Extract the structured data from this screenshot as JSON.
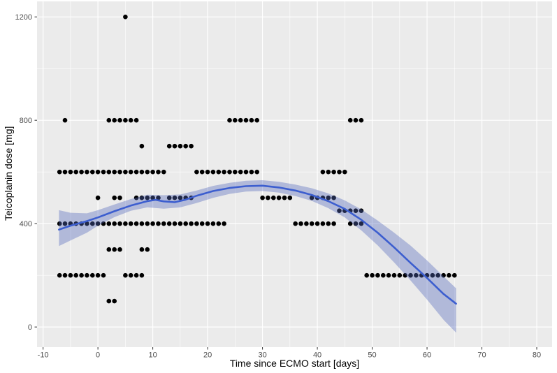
{
  "style": {
    "panel_bg": "#ebebeb",
    "grid_color": "#ffffff",
    "point_color": "#000000",
    "line_color": "#3c5ecf",
    "ribbon_color": "rgba(85,105,190,0.38)",
    "tick_text_color": "#4d4d4d",
    "tick_mark_color": "#333333",
    "axis_title_color": "#000000"
  },
  "chart_data": {
    "type": "scatter",
    "title": "",
    "xlabel": "Time since ECMO start [days]",
    "ylabel": "Teicoplanin dose [mg]",
    "xlim": [
      -11.1,
      82.8
    ],
    "ylim": [
      -78,
      1260
    ],
    "x_ticks": [
      -10,
      0,
      10,
      20,
      30,
      40,
      50,
      60,
      70,
      80
    ],
    "x_minor_ticks": [
      -5,
      5,
      15,
      25,
      35,
      45,
      55,
      65,
      75
    ],
    "y_ticks": [
      0,
      400,
      800,
      1200
    ],
    "y_minor_ticks": [
      200,
      600,
      1000
    ],
    "grid": true,
    "legend": "none",
    "points": [
      {
        "dose": 1200,
        "days": [
          5
        ]
      },
      {
        "dose": 800,
        "days": [
          -6,
          2,
          3,
          4,
          5,
          6,
          7,
          24,
          25,
          26,
          27,
          28,
          29,
          46,
          47,
          48
        ]
      },
      {
        "dose": 700,
        "days": [
          8,
          13,
          14,
          15,
          16,
          17
        ]
      },
      {
        "dose": 600,
        "days": [
          -7,
          -6,
          -5,
          -4,
          -3,
          -2,
          -1,
          0,
          1,
          2,
          3,
          4,
          5,
          6,
          7,
          8,
          9,
          10,
          11,
          12,
          18,
          19,
          20,
          21,
          22,
          23,
          24,
          25,
          26,
          27,
          28,
          29,
          41,
          42,
          43,
          44,
          45
        ]
      },
      {
        "dose": 500,
        "days": [
          0,
          3,
          4,
          7,
          8,
          9,
          10,
          11,
          13,
          14,
          15,
          16,
          17,
          30,
          31,
          32,
          33,
          34,
          35,
          39,
          40,
          41,
          42,
          43
        ]
      },
      {
        "dose": 450,
        "days": [
          44,
          45,
          46,
          47,
          48
        ]
      },
      {
        "dose": 400,
        "days": [
          -7,
          -6,
          -5,
          -4,
          -3,
          -2,
          -1,
          0,
          1,
          2,
          3,
          4,
          5,
          6,
          7,
          8,
          9,
          10,
          11,
          12,
          13,
          14,
          15,
          16,
          17,
          18,
          19,
          20,
          21,
          22,
          23,
          36,
          37,
          38,
          39,
          40,
          41,
          42,
          43,
          46,
          47,
          48
        ]
      },
      {
        "dose": 300,
        "days": [
          2,
          3,
          4,
          8,
          9
        ]
      },
      {
        "dose": 200,
        "days": [
          -7,
          -6,
          -5,
          -4,
          -3,
          -2,
          -1,
          0,
          1,
          5,
          6,
          7,
          8,
          49,
          50,
          51,
          52,
          53,
          54,
          55,
          56,
          57,
          58,
          59,
          60,
          61,
          62,
          63,
          64,
          65
        ]
      },
      {
        "dose": 100,
        "days": [
          2,
          3
        ]
      }
    ],
    "smooth_line": {
      "x": [
        -7.1,
        -5,
        -2,
        0,
        3,
        6,
        9,
        10.5,
        12,
        14,
        16,
        18,
        21,
        24,
        27,
        30,
        33,
        36,
        39,
        42,
        45,
        48,
        51,
        54,
        57,
        60,
        63,
        65.3
      ],
      "y": [
        377,
        392,
        410,
        424,
        448,
        470,
        487,
        492,
        486,
        483,
        493,
        508,
        526,
        538,
        545,
        547,
        540,
        528,
        511,
        487,
        457,
        415,
        365,
        308,
        248,
        190,
        128,
        90
      ]
    },
    "ribbon": {
      "x": [
        -7.1,
        -5,
        -2,
        0,
        3,
        6,
        9,
        12,
        15,
        18,
        21,
        24,
        27,
        30,
        33,
        36,
        39,
        42,
        45,
        48,
        51,
        54,
        57,
        60,
        63,
        65.3
      ],
      "upper": [
        452,
        442,
        440,
        452,
        474,
        495,
        512,
        510,
        513,
        528,
        546,
        558,
        566,
        568,
        562,
        551,
        537,
        517,
        490,
        455,
        412,
        365,
        315,
        258,
        196,
        150
      ],
      "lower": [
        313,
        335,
        365,
        392,
        425,
        450,
        463,
        458,
        463,
        480,
        500,
        515,
        524,
        526,
        520,
        507,
        488,
        460,
        424,
        374,
        316,
        250,
        180,
        106,
        28,
        -22
      ]
    }
  }
}
